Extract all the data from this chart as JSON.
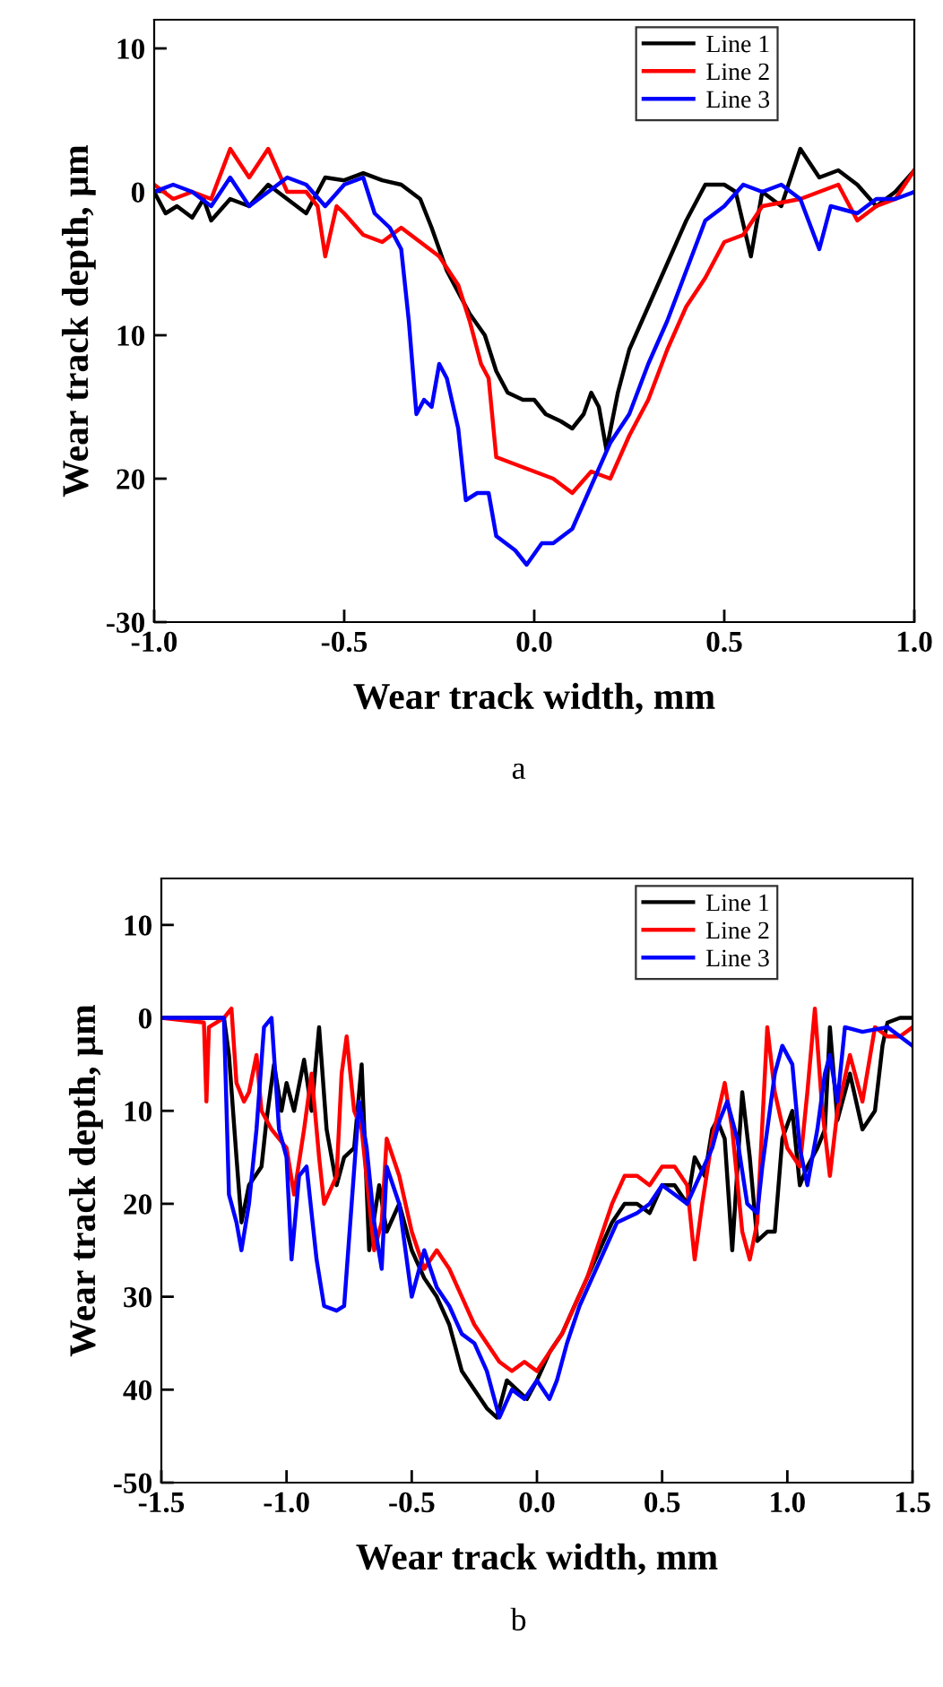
{
  "chart_data": [
    {
      "type": "line",
      "xlabel": "Wear track width, mm",
      "ylabel": "Wear track depth, µm",
      "annotations": [
        "a"
      ],
      "legend": "top right",
      "grid": false,
      "xlim": [
        -1.0,
        1.0
      ],
      "xticks": [
        {
          "value": -1.0,
          "label": "-1.0"
        },
        {
          "value": -0.5,
          "label": "-0.5"
        },
        {
          "value": 0.0,
          "label": "0.0"
        },
        {
          "value": 0.5,
          "label": "0.5"
        },
        {
          "value": 1.0,
          "label": "1.0"
        }
      ],
      "ylim": [
        -30,
        12
      ],
      "yticks": [
        10,
        0,
        {
          "value": -10,
          "label": "10"
        },
        {
          "value": -20,
          "label": "20"
        },
        -30
      ],
      "series": [
        {
          "name": "Line 1",
          "color": "#000000",
          "x": [
            -1.0,
            -0.97,
            -0.94,
            -0.9,
            -0.87,
            -0.85,
            -0.8,
            -0.75,
            -0.7,
            -0.65,
            -0.6,
            -0.55,
            -0.5,
            -0.45,
            -0.4,
            -0.35,
            -0.3,
            -0.27,
            -0.23,
            -0.2,
            -0.17,
            -0.13,
            -0.1,
            -0.07,
            -0.03,
            0.0,
            0.03,
            0.07,
            0.1,
            0.13,
            0.15,
            0.17,
            0.19,
            0.22,
            0.25,
            0.3,
            0.35,
            0.4,
            0.45,
            0.5,
            0.53,
            0.57,
            0.6,
            0.65,
            0.7,
            0.75,
            0.8,
            0.85,
            0.9,
            0.95,
            1.0
          ],
          "values": [
            0,
            -1.5,
            -1,
            -1.8,
            -0.5,
            -2,
            -0.5,
            -1,
            0.5,
            -0.5,
            -1.5,
            1,
            0.8,
            1.3,
            0.8,
            0.5,
            -0.5,
            -2.5,
            -5.5,
            -7,
            -8.5,
            -10,
            -12.5,
            -14,
            -14.5,
            -14.5,
            -15.5,
            -16,
            -16.5,
            -15.5,
            -14,
            -15,
            -18,
            -14,
            -11,
            -8,
            -5,
            -2,
            0.5,
            0.5,
            0,
            -4.5,
            0,
            -1,
            3,
            1,
            1.5,
            0.5,
            -1,
            0,
            1.5
          ]
        },
        {
          "name": "Line 2",
          "color": "#ff0000",
          "x": [
            -1.0,
            -0.95,
            -0.9,
            -0.85,
            -0.8,
            -0.75,
            -0.7,
            -0.65,
            -0.6,
            -0.57,
            -0.55,
            -0.52,
            -0.5,
            -0.45,
            -0.4,
            -0.35,
            -0.3,
            -0.25,
            -0.2,
            -0.17,
            -0.14,
            -0.12,
            -0.1,
            -0.05,
            0.0,
            0.05,
            0.1,
            0.15,
            0.2,
            0.25,
            0.3,
            0.35,
            0.4,
            0.45,
            0.5,
            0.55,
            0.6,
            0.7,
            0.8,
            0.85,
            0.9,
            0.95,
            1.0
          ],
          "values": [
            0.5,
            -0.5,
            0,
            -0.5,
            3,
            1,
            3,
            0,
            0,
            -1,
            -4.5,
            -1,
            -1.5,
            -3,
            -3.5,
            -2.5,
            -3.5,
            -4.5,
            -6.5,
            -9,
            -12,
            -13,
            -18.5,
            -19,
            -19.5,
            -20,
            -21,
            -19.5,
            -20,
            -17,
            -14.5,
            -11,
            -8,
            -6,
            -3.5,
            -3,
            -1,
            -0.5,
            0.5,
            -2,
            -1,
            -0.5,
            1.5
          ]
        },
        {
          "name": "Line 3",
          "color": "#0000ff",
          "x": [
            -1.0,
            -0.95,
            -0.9,
            -0.85,
            -0.8,
            -0.75,
            -0.7,
            -0.65,
            -0.6,
            -0.55,
            -0.5,
            -0.45,
            -0.42,
            -0.38,
            -0.35,
            -0.33,
            -0.31,
            -0.29,
            -0.27,
            -0.25,
            -0.23,
            -0.2,
            -0.18,
            -0.15,
            -0.12,
            -0.1,
            -0.05,
            -0.02,
            0.02,
            0.05,
            0.1,
            0.15,
            0.2,
            0.25,
            0.3,
            0.35,
            0.4,
            0.45,
            0.5,
            0.55,
            0.6,
            0.65,
            0.7,
            0.75,
            0.78,
            0.85,
            0.9,
            0.95,
            1.0
          ],
          "values": [
            0,
            0.5,
            0,
            -1,
            1,
            -1,
            0,
            1,
            0.5,
            -1,
            0.5,
            1,
            -1.5,
            -2.5,
            -4,
            -9,
            -15.5,
            -14.5,
            -15,
            -12,
            -13,
            -16.5,
            -21.5,
            -21,
            -21,
            -24,
            -25,
            -26,
            -24.5,
            -24.5,
            -23.5,
            -20.5,
            -17.5,
            -15.5,
            -12,
            -9,
            -5.5,
            -2,
            -1,
            0.5,
            0,
            0.5,
            -0.5,
            -4,
            -1,
            -1.5,
            -0.5,
            -0.5,
            0
          ]
        }
      ]
    },
    {
      "type": "line",
      "xlabel": "Wear track width, mm",
      "ylabel": "Wear track depth, µm",
      "annotations": [
        "b"
      ],
      "legend": "top right",
      "grid": false,
      "xlim": [
        -1.5,
        1.5
      ],
      "xticks": [
        {
          "value": -1.5,
          "label": "-1.5"
        },
        {
          "value": -1.0,
          "label": "-1.0"
        },
        {
          "value": -0.5,
          "label": "-0.5"
        },
        {
          "value": 0.0,
          "label": "0.0"
        },
        {
          "value": 0.5,
          "label": "0.5"
        },
        {
          "value": 1.0,
          "label": "1.0"
        },
        {
          "value": 1.5,
          "label": "1.5"
        }
      ],
      "ylim": [
        -50,
        15
      ],
      "yticks": [
        10,
        0,
        {
          "value": -10,
          "label": "10"
        },
        {
          "value": -20,
          "label": "20"
        },
        {
          "value": -30,
          "label": "30"
        },
        {
          "value": -40,
          "label": "40"
        },
        -50
      ],
      "series": [
        {
          "name": "Line 1",
          "color": "#000000",
          "x": [
            -1.5,
            -1.25,
            -1.23,
            -1.2,
            -1.18,
            -1.15,
            -1.1,
            -1.08,
            -1.05,
            -1.02,
            -1.0,
            -0.97,
            -0.93,
            -0.9,
            -0.87,
            -0.84,
            -0.8,
            -0.77,
            -0.73,
            -0.7,
            -0.67,
            -0.63,
            -0.6,
            -0.55,
            -0.5,
            -0.45,
            -0.4,
            -0.35,
            -0.3,
            -0.25,
            -0.2,
            -0.16,
            -0.12,
            -0.08,
            -0.04,
            0.0,
            0.05,
            0.1,
            0.15,
            0.2,
            0.25,
            0.3,
            0.35,
            0.4,
            0.45,
            0.5,
            0.55,
            0.6,
            0.63,
            0.67,
            0.7,
            0.72,
            0.75,
            0.78,
            0.82,
            0.85,
            0.88,
            0.92,
            0.95,
            0.98,
            1.02,
            1.05,
            1.08,
            1.12,
            1.15,
            1.17,
            1.2,
            1.25,
            1.3,
            1.35,
            1.38,
            1.4,
            1.45,
            1.5
          ],
          "values": [
            0,
            0,
            -4,
            -15,
            -22,
            -18,
            -16,
            -11,
            -5,
            -10,
            -7,
            -10,
            -4.5,
            -10,
            -1,
            -12,
            -18,
            -15,
            -14,
            -5,
            -25,
            -18,
            -23,
            -20,
            -25,
            -28,
            -30,
            -33,
            -38,
            -40,
            -42,
            -43,
            -39,
            -40,
            -41,
            -39,
            -36,
            -34,
            -31,
            -28,
            -25,
            -22,
            -20,
            -20,
            -21,
            -18,
            -18,
            -20,
            -15,
            -17,
            -12,
            -11,
            -13,
            -25,
            -8,
            -15,
            -24,
            -23,
            -23,
            -13,
            -10,
            -18,
            -16,
            -14,
            -12,
            -1,
            -11,
            -6,
            -12,
            -10,
            -3,
            -0.5,
            0,
            0
          ]
        },
        {
          "name": "Line 2",
          "color": "#ff0000",
          "x": [
            -1.5,
            -1.33,
            -1.32,
            -1.31,
            -1.25,
            -1.22,
            -1.2,
            -1.17,
            -1.15,
            -1.12,
            -1.1,
            -1.06,
            -1.0,
            -0.97,
            -0.93,
            -0.9,
            -0.87,
            -0.85,
            -0.8,
            -0.78,
            -0.76,
            -0.73,
            -0.7,
            -0.65,
            -0.62,
            -0.6,
            -0.55,
            -0.5,
            -0.45,
            -0.4,
            -0.35,
            -0.3,
            -0.25,
            -0.2,
            -0.15,
            -0.1,
            -0.05,
            0.0,
            0.05,
            0.1,
            0.15,
            0.2,
            0.25,
            0.3,
            0.35,
            0.4,
            0.45,
            0.5,
            0.55,
            0.6,
            0.63,
            0.66,
            0.7,
            0.75,
            0.78,
            0.82,
            0.85,
            0.88,
            0.92,
            0.95,
            1.0,
            1.05,
            1.08,
            1.11,
            1.14,
            1.17,
            1.2,
            1.25,
            1.3,
            1.35,
            1.4,
            1.45,
            1.5
          ],
          "values": [
            0,
            -0.5,
            -9,
            -1,
            0,
            1,
            -7,
            -9,
            -8,
            -4,
            -10,
            -12,
            -14,
            -19,
            -12,
            -6,
            -15,
            -20,
            -17,
            -6,
            -2,
            -10,
            -12,
            -25,
            -22,
            -13,
            -17,
            -23,
            -27,
            -25,
            -27,
            -30,
            -33,
            -35,
            -37,
            -38,
            -37,
            -38,
            -36,
            -34,
            -31,
            -28,
            -24,
            -20,
            -17,
            -17,
            -18,
            -16,
            -16,
            -18,
            -26,
            -20,
            -13,
            -7,
            -12,
            -23,
            -26,
            -22,
            -1,
            -8,
            -14,
            -16,
            -8,
            1,
            -10,
            -17,
            -10,
            -4,
            -9,
            -1,
            -2,
            -2,
            -1
          ]
        },
        {
          "name": "Line 3",
          "color": "#0000ff",
          "x": [
            -1.5,
            -1.25,
            -1.23,
            -1.2,
            -1.18,
            -1.15,
            -1.12,
            -1.09,
            -1.06,
            -1.03,
            -1.0,
            -0.98,
            -0.95,
            -0.92,
            -0.88,
            -0.85,
            -0.8,
            -0.77,
            -0.74,
            -0.71,
            -0.68,
            -0.65,
            -0.62,
            -0.6,
            -0.55,
            -0.5,
            -0.45,
            -0.4,
            -0.35,
            -0.3,
            -0.25,
            -0.2,
            -0.15,
            -0.1,
            -0.05,
            0.0,
            0.05,
            0.08,
            0.12,
            0.17,
            0.22,
            0.27,
            0.32,
            0.4,
            0.45,
            0.5,
            0.55,
            0.6,
            0.65,
            0.7,
            0.73,
            0.76,
            0.8,
            0.84,
            0.88,
            0.9,
            0.95,
            0.98,
            1.02,
            1.05,
            1.08,
            1.12,
            1.15,
            1.17,
            1.2,
            1.23,
            1.3,
            1.4,
            1.45,
            1.5
          ],
          "values": [
            0,
            0,
            -19,
            -22,
            -25,
            -20,
            -12,
            -1,
            0,
            -12,
            -15,
            -26,
            -17,
            -16,
            -26,
            -31,
            -31.5,
            -31,
            -20,
            -9,
            -14,
            -22,
            -27,
            -16,
            -20,
            -30,
            -25,
            -29,
            -31,
            -34,
            -35,
            -38,
            -43,
            -40,
            -41,
            -39,
            -41,
            -39,
            -35,
            -31,
            -28,
            -25,
            -22,
            -21,
            -20,
            -18,
            -19,
            -20,
            -17,
            -14,
            -11,
            -9,
            -13,
            -20,
            -21,
            -16,
            -6,
            -3,
            -5,
            -14,
            -18,
            -12,
            -6,
            -4,
            -9,
            -1,
            -1.5,
            -1,
            -2,
            -3
          ]
        }
      ]
    }
  ]
}
